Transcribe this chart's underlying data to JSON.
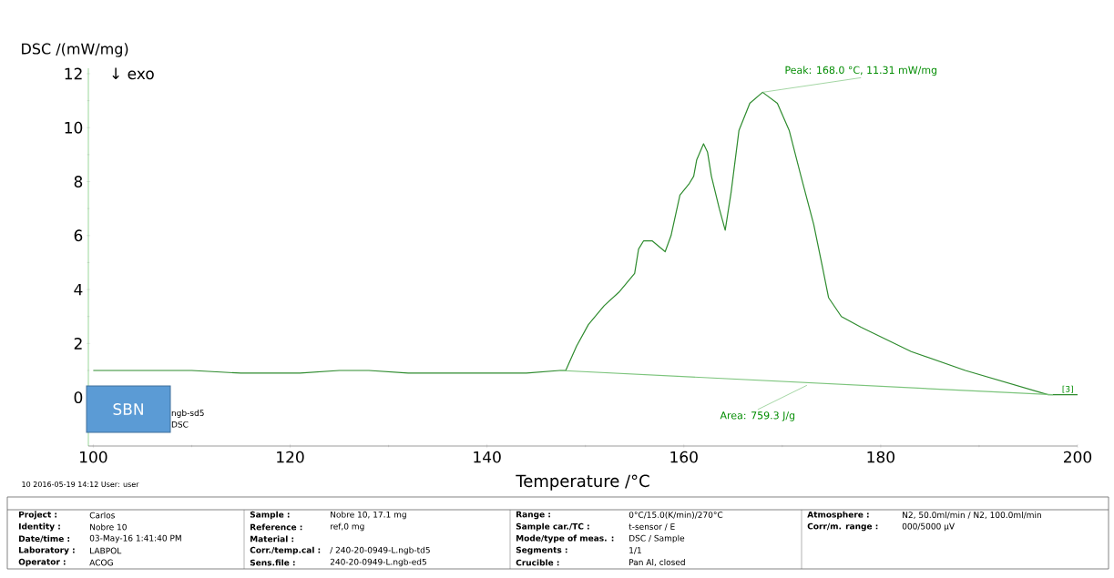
{
  "chart_data": {
    "type": "line",
    "xlabel": "Temperature /°C",
    "ylabel": "DSC /(mW/mg)",
    "xlim": [
      99.5,
      200
    ],
    "ylim": [
      -1.8,
      12.2
    ],
    "xticks": [
      100,
      120,
      140,
      160,
      180,
      200
    ],
    "yticks": [
      0,
      2,
      4,
      6,
      8,
      10,
      12
    ],
    "grid": false,
    "marker": "none",
    "line_style": "solid",
    "series": [
      {
        "color": "#2e8b2e",
        "x": [
          100,
          105,
          110,
          115,
          118,
          121,
          125,
          128,
          132,
          136,
          140,
          144,
          147.4,
          148.0,
          149.1,
          150.3,
          151.9,
          153.4,
          155.0,
          155.4,
          155.9,
          156.8,
          158.1,
          158.7,
          159.6,
          160.5,
          161.0,
          161.3,
          162.0,
          162.4,
          162.8,
          163.6,
          164.2,
          164.8,
          165.6,
          166.7,
          168.0,
          169.5,
          170.7,
          171.9,
          173.2,
          174.1,
          174.7,
          176.0,
          178.0,
          183.1,
          188.6,
          194.2,
          197.0,
          197.9,
          200
        ],
        "values": [
          1.0,
          1.0,
          1.0,
          0.9,
          0.9,
          0.9,
          1.0,
          1.0,
          0.9,
          0.9,
          0.9,
          0.9,
          1.0,
          1.0,
          1.9,
          2.7,
          3.4,
          3.9,
          4.6,
          5.5,
          5.8,
          5.8,
          5.4,
          6.0,
          7.5,
          7.9,
          8.2,
          8.8,
          9.4,
          9.1,
          8.2,
          7.0,
          6.2,
          7.6,
          9.9,
          10.9,
          11.31,
          10.9,
          9.9,
          8.2,
          6.4,
          4.8,
          3.7,
          3.0,
          2.6,
          1.7,
          1.0,
          0.4,
          0.1,
          0.1,
          0.1
        ]
      },
      {
        "color": "#7cc47c",
        "x": [
          147.4,
          197.5
        ],
        "values": [
          1.0,
          0.1
        ]
      }
    ],
    "annotations": [
      "↓ exo",
      {
        "text": "Peak: 168.0 °C, 11.31 mW/mg",
        "x": 168.0,
        "y": 11.31
      },
      {
        "text": "Area: 759.3 J/g",
        "x": 172.5,
        "y": 0.45
      },
      "[3]",
      "ngb-sd5",
      "DSC",
      "SBN",
      "10   2016-05-19 14:12   User: user",
      "Project :",
      "Carlos",
      "Identity :",
      "Nobre 10",
      "Date/time :",
      "03-May-16 1:41:40 PM",
      "Laboratory :",
      "LABPOL",
      "Operator :",
      "ACOG",
      "Sample :",
      "Nobre 10, 17.1 mg",
      "Reference :",
      "ref,0 mg",
      "Material :",
      "Corr./temp.cal :",
      "/ 240-20-0949-L.ngb-td5",
      "Sens.file :",
      "240-20-0949-L.ngb-ed5",
      "Range :",
      "0°C/15.0(K/min)/270°C",
      "Sample car./TC :",
      "t-sensor / E",
      "Mode/type of meas. :",
      "DSC / Sample",
      "Segments :",
      "1/1",
      "Crucible :",
      "Pan Al, closed",
      "Atmosphere :",
      "N2, 50.0ml/min / N2, 100.0ml/min",
      "Corr/m. range :",
      "000/5000 µV"
    ]
  }
}
